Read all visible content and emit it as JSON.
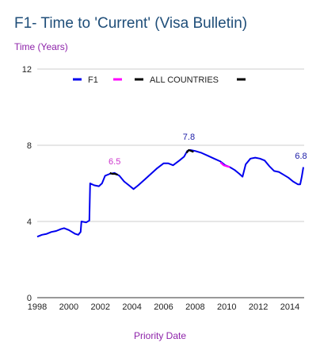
{
  "chart_data": {
    "type": "line",
    "title": "F1- Time to 'Current' (Visa Bulletin)",
    "ylabel": "Time (Years)",
    "xlabel": "Priority Date",
    "xlim": [
      1998,
      2014.9
    ],
    "ylim": [
      0,
      12
    ],
    "y_ticks": [
      0,
      4,
      8,
      12
    ],
    "x_ticks": [
      1998,
      2000,
      2002,
      2004,
      2006,
      2008,
      2010,
      2012,
      2014
    ],
    "grid": "horizontal",
    "legend_position": "top",
    "series": [
      {
        "name": "F1",
        "color": "#0000ee",
        "points": [
          [
            1998.0,
            3.2
          ],
          [
            1998.3,
            3.3
          ],
          [
            1998.6,
            3.35
          ],
          [
            1998.9,
            3.45
          ],
          [
            1999.2,
            3.5
          ],
          [
            1999.5,
            3.6
          ],
          [
            1999.7,
            3.65
          ],
          [
            2000.0,
            3.55
          ],
          [
            2000.2,
            3.45
          ],
          [
            2000.4,
            3.35
          ],
          [
            2000.6,
            3.3
          ],
          [
            2000.75,
            3.45
          ],
          [
            2000.8,
            4.0
          ],
          [
            2001.1,
            3.95
          ],
          [
            2001.3,
            4.05
          ],
          [
            2001.35,
            6.0
          ],
          [
            2001.6,
            5.9
          ],
          [
            2001.9,
            5.85
          ],
          [
            2002.1,
            6.0
          ],
          [
            2002.3,
            6.4
          ],
          [
            2002.6,
            6.5
          ],
          [
            2002.9,
            6.55
          ],
          [
            2003.2,
            6.4
          ],
          [
            2003.5,
            6.1
          ],
          [
            2003.8,
            5.9
          ],
          [
            2004.1,
            5.7
          ],
          [
            2004.4,
            5.9
          ],
          [
            2004.8,
            6.2
          ],
          [
            2005.2,
            6.5
          ],
          [
            2005.6,
            6.8
          ],
          [
            2006.0,
            7.05
          ],
          [
            2006.3,
            7.05
          ],
          [
            2006.6,
            6.95
          ],
          [
            2007.0,
            7.2
          ],
          [
            2007.3,
            7.4
          ],
          [
            2007.5,
            7.7
          ],
          [
            2007.7,
            7.75
          ],
          [
            2008.0,
            7.7
          ],
          [
            2008.4,
            7.6
          ],
          [
            2008.8,
            7.45
          ],
          [
            2009.2,
            7.3
          ],
          [
            2009.6,
            7.15
          ],
          [
            2009.9,
            6.95
          ],
          [
            2010.2,
            6.85
          ],
          [
            2010.5,
            6.7
          ],
          [
            2010.8,
            6.5
          ],
          [
            2011.0,
            6.35
          ],
          [
            2011.2,
            7.0
          ],
          [
            2011.5,
            7.3
          ],
          [
            2011.8,
            7.35
          ],
          [
            2012.1,
            7.3
          ],
          [
            2012.4,
            7.2
          ],
          [
            2012.7,
            6.9
          ],
          [
            2013.0,
            6.65
          ],
          [
            2013.3,
            6.6
          ],
          [
            2013.6,
            6.45
          ],
          [
            2013.9,
            6.3
          ],
          [
            2014.2,
            6.1
          ],
          [
            2014.5,
            5.95
          ],
          [
            2014.65,
            5.95
          ],
          [
            2014.75,
            6.35
          ],
          [
            2014.85,
            6.85
          ]
        ]
      },
      {
        "name": "",
        "color": "#ff00ff",
        "points": [
          [
            2009.6,
            7.1
          ],
          [
            2009.8,
            6.95
          ],
          [
            2010.0,
            6.9
          ],
          [
            2010.2,
            6.85
          ]
        ]
      },
      {
        "name": "ALL COUNTRIES",
        "color": "#000000",
        "points": [
          [
            2002.6,
            6.55
          ],
          [
            2002.75,
            6.5
          ],
          [
            2002.9,
            6.5
          ],
          [
            2003.1,
            6.45
          ]
        ]
      },
      {
        "name": "",
        "color": "#000000",
        "points": [
          [
            2007.45,
            7.6
          ],
          [
            2007.6,
            7.75
          ],
          [
            2007.75,
            7.7
          ],
          [
            2007.9,
            7.65
          ]
        ]
      }
    ],
    "annotations": [
      {
        "text": "6.5",
        "x": 2002.9,
        "y": 6.5,
        "color": "#cc33cc"
      },
      {
        "text": "7.8",
        "x": 2007.6,
        "y": 7.8,
        "color": "#1a1aa6"
      },
      {
        "text": "6.8",
        "x": 2014.7,
        "y": 6.8,
        "color": "#1a1aa6"
      }
    ]
  }
}
